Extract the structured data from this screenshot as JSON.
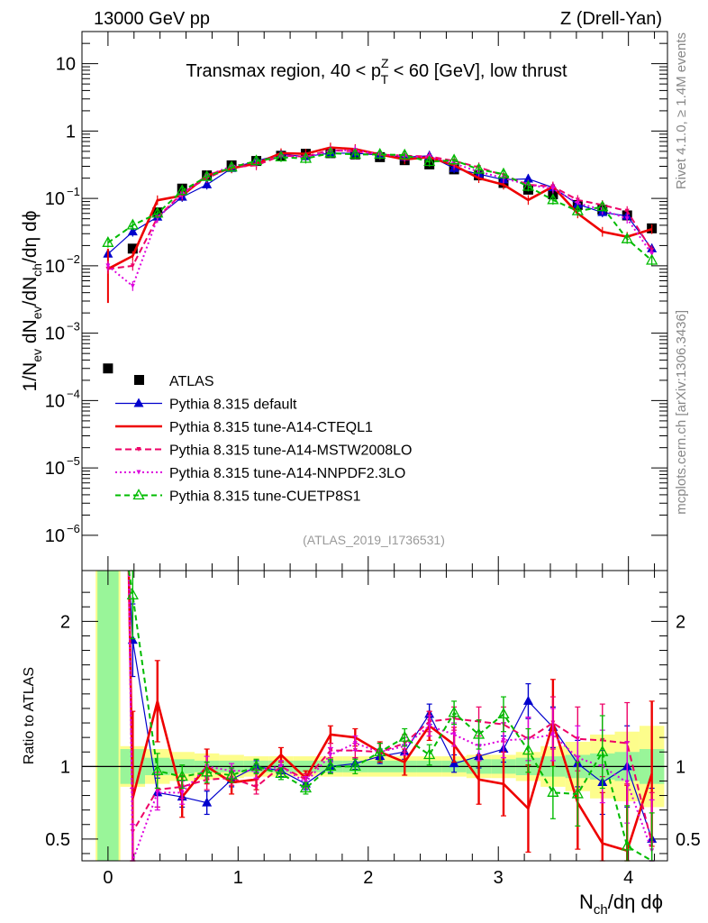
{
  "header": {
    "left": "13000 GeV pp",
    "right": "Z (Drell-Yan)"
  },
  "side": {
    "rivet": "Rivet 4.1.0, ≥ 1.4M events",
    "mcplots": "mcplots.cern.ch [arXiv:1306.3436]"
  },
  "analysis_id": "(ATLAS_2019_I1736531)",
  "colors": {
    "atlas": "#000000",
    "default": "#0000cc",
    "cteql1": "#ee0000",
    "mstw": "#ee0066",
    "nnpdf": "#dd00dd",
    "cuetp8s1": "#00bb00",
    "band_inner": "#99f599",
    "band_outer": "#fdfd8c"
  },
  "chart_data": [
    {
      "type": "scatter",
      "title_parts": {
        "pre": "Transmax region, 40 < p",
        "sup": "Z",
        "sub": "T",
        "post": " < 60 [GeV], low thrust"
      },
      "ylabel_parts": [
        "1/N",
        "ev",
        " dN",
        "ev",
        "/dN",
        "ch",
        "/dη dϕ"
      ],
      "yscale": "log",
      "ylim": [
        3e-07,
        30
      ],
      "xlim": [
        -0.2,
        4.3
      ],
      "yticks": [
        {
          "v": 10,
          "label": "10"
        },
        {
          "v": 1,
          "label": "1"
        },
        {
          "v": 0.1,
          "label": "10",
          "exp": "−1"
        },
        {
          "v": 0.01,
          "label": "10",
          "exp": "−2"
        },
        {
          "v": 0.001,
          "label": "10",
          "exp": "−3"
        },
        {
          "v": 0.0001,
          "label": "10",
          "exp": "−4"
        },
        {
          "v": 1e-05,
          "label": "10",
          "exp": "−5"
        },
        {
          "v": 1e-06,
          "label": "10",
          "exp": "−6"
        }
      ],
      "x": [
        0.0,
        0.19,
        0.38,
        0.57,
        0.76,
        0.95,
        1.14,
        1.33,
        1.52,
        1.71,
        1.9,
        2.09,
        2.28,
        2.47,
        2.66,
        2.85,
        3.04,
        3.23,
        3.42,
        3.61,
        3.8,
        3.99,
        4.18
      ],
      "series": [
        {
          "name": "ATLAS",
          "key": "atlas",
          "style": "square",
          "values": [
            0.0003,
            0.018,
            0.062,
            0.14,
            0.22,
            0.31,
            0.36,
            0.43,
            0.46,
            0.47,
            0.45,
            0.41,
            0.37,
            0.32,
            0.27,
            0.22,
            0.17,
            0.135,
            0.115,
            0.08,
            0.068,
            0.056,
            0.036
          ]
        },
        {
          "name": "Pythia 8.315 default",
          "key": "default",
          "style": "triangle-filled",
          "values": [
            0.015,
            0.032,
            0.053,
            0.105,
            0.16,
            0.28,
            0.36,
            0.45,
            0.42,
            0.47,
            0.47,
            0.44,
            0.41,
            0.43,
            0.28,
            0.23,
            0.19,
            0.195,
            0.145,
            0.082,
            0.062,
            0.055,
            0.018
          ]
        },
        {
          "name": "Pythia 8.315 tune-A14-CTEQL1",
          "key": "cteql1",
          "style": "solid",
          "values": [
            0.009,
            0.014,
            0.094,
            0.11,
            0.22,
            0.28,
            0.33,
            0.47,
            0.46,
            0.57,
            0.54,
            0.45,
            0.38,
            0.41,
            0.31,
            0.2,
            0.16,
            0.095,
            0.15,
            0.06,
            0.032,
            0.027,
            0.035
          ]
        },
        {
          "name": "Pythia 8.315 tune-A14-MSTW2008LO",
          "key": "mstw",
          "style": "dashed",
          "values": [
            0.009,
            0.01,
            0.052,
            0.12,
            0.2,
            0.29,
            0.31,
            0.43,
            0.42,
            0.52,
            0.5,
            0.45,
            0.43,
            0.42,
            0.36,
            0.29,
            0.22,
            0.16,
            0.15,
            0.095,
            0.08,
            0.065,
            0.017
          ]
        },
        {
          "name": "Pythia 8.315 tune-A14-NNPDF2.3LO",
          "key": "nnpdf",
          "style": "dotted",
          "values": [
            0.01,
            0.005,
            0.051,
            0.115,
            0.22,
            0.3,
            0.35,
            0.43,
            0.41,
            0.51,
            0.52,
            0.45,
            0.42,
            0.41,
            0.33,
            0.25,
            0.2,
            0.16,
            0.14,
            0.085,
            0.068,
            0.05,
            0.015
          ]
        },
        {
          "name": "Pythia 8.315 tune-CUETP8S1",
          "key": "cuetp8s1",
          "style": "dashed-triangle-open",
          "values": [
            0.022,
            0.04,
            0.06,
            0.13,
            0.21,
            0.29,
            0.36,
            0.41,
            0.39,
            0.47,
            0.45,
            0.45,
            0.44,
            0.35,
            0.37,
            0.27,
            0.23,
            0.15,
            0.095,
            0.065,
            0.075,
            0.025,
            0.012
          ]
        }
      ]
    },
    {
      "type": "line",
      "ylabel": "Ratio to ATLAS",
      "xlabel_parts": [
        "N",
        "ch",
        "/dη dϕ"
      ],
      "ylim": [
        0.35,
        2.35
      ],
      "xlim": [
        -0.2,
        4.3
      ],
      "yticks": [
        {
          "v": 0.5,
          "label": "0.5"
        },
        {
          "v": 1,
          "label": "1"
        },
        {
          "v": 2,
          "label": "2"
        }
      ],
      "xticks": [
        {
          "v": 0,
          "label": "0"
        },
        {
          "v": 1,
          "label": "1"
        },
        {
          "v": 2,
          "label": "2"
        },
        {
          "v": 3,
          "label": "3"
        },
        {
          "v": 4,
          "label": "4"
        }
      ],
      "x": [
        0.0,
        0.19,
        0.38,
        0.57,
        0.76,
        0.95,
        1.14,
        1.33,
        1.52,
        1.71,
        1.9,
        2.09,
        2.28,
        2.47,
        2.66,
        2.85,
        3.04,
        3.23,
        3.42,
        3.61,
        3.8,
        3.99,
        4.18
      ],
      "band_inner": [
        1.6,
        0.12,
        0.06,
        0.05,
        0.04,
        0.04,
        0.04,
        0.04,
        0.04,
        0.04,
        0.04,
        0.04,
        0.04,
        0.04,
        0.04,
        0.05,
        0.05,
        0.06,
        0.07,
        0.08,
        0.09,
        0.1,
        0.12
      ],
      "band_outer": [
        1.6,
        0.14,
        0.12,
        0.1,
        0.09,
        0.08,
        0.07,
        0.07,
        0.07,
        0.07,
        0.07,
        0.07,
        0.07,
        0.07,
        0.07,
        0.08,
        0.08,
        0.1,
        0.14,
        0.17,
        0.22,
        0.24,
        0.28
      ],
      "series": [
        {
          "name": "Pythia 8.315 default",
          "key": "default",
          "style": "triangle-filled",
          "values": [
            null,
            1.87,
            0.82,
            0.79,
            0.75,
            0.91,
            1.0,
            0.97,
            0.88,
            1.0,
            1.02,
            1.07,
            1.1,
            1.36,
            1.02,
            1.07,
            1.12,
            1.45,
            1.27,
            1.02,
            0.89,
            1.0,
            0.5
          ],
          "errors": [
            0,
            0.25,
            0.1,
            0.07,
            0.08,
            0.05,
            0.04,
            0.04,
            0.04,
            0.04,
            0.04,
            0.05,
            0.05,
            0.07,
            0.06,
            0.08,
            0.09,
            0.12,
            0.14,
            0.16,
            0.22,
            0.28,
            0.35
          ]
        },
        {
          "name": "Pythia 8.315 tune-A14-CTEQL1",
          "key": "cteql1",
          "style": "solid",
          "values": [
            null,
            0.78,
            1.45,
            0.79,
            1.0,
            0.89,
            0.91,
            1.08,
            0.92,
            1.22,
            1.2,
            1.1,
            1.03,
            1.28,
            1.15,
            0.91,
            0.88,
            0.71,
            1.3,
            0.75,
            0.47,
            0.42,
            0.95
          ],
          "errors": [
            0,
            0.6,
            0.28,
            0.14,
            0.12,
            0.08,
            0.07,
            0.05,
            0.05,
            0.06,
            0.06,
            0.07,
            0.09,
            0.1,
            0.12,
            0.17,
            0.22,
            0.3,
            0.3,
            0.32,
            0.35,
            0.45,
            0.5
          ]
        },
        {
          "name": "Pythia 8.315 tune-A14-MSTW2008LO",
          "key": "mstw",
          "style": "dashed",
          "values": [
            null,
            0.55,
            0.84,
            0.86,
            0.91,
            0.92,
            0.86,
            1.0,
            0.91,
            1.11,
            1.11,
            1.1,
            1.16,
            1.31,
            1.33,
            1.31,
            1.29,
            1.19,
            1.3,
            1.19,
            1.18,
            1.16,
            0.47
          ],
          "errors": [
            0,
            0.3,
            0.12,
            0.08,
            0.07,
            0.05,
            0.05,
            0.04,
            0.04,
            0.05,
            0.05,
            0.06,
            0.06,
            0.07,
            0.08,
            0.1,
            0.12,
            0.15,
            0.18,
            0.22,
            0.25,
            0.28,
            0.35
          ]
        },
        {
          "name": "Pythia 8.315 tune-A14-NNPDF2.3LO",
          "key": "nnpdf",
          "style": "dotted",
          "values": [
            null,
            0.3,
            0.82,
            0.82,
            1.0,
            0.97,
            0.97,
            1.0,
            0.89,
            1.08,
            1.16,
            1.1,
            1.14,
            1.28,
            1.22,
            1.14,
            1.18,
            1.19,
            1.22,
            1.06,
            1.0,
            0.89,
            0.42
          ],
          "errors": [
            0,
            0.3,
            0.12,
            0.08,
            0.07,
            0.05,
            0.05,
            0.04,
            0.04,
            0.05,
            0.05,
            0.06,
            0.06,
            0.07,
            0.08,
            0.1,
            0.12,
            0.15,
            0.18,
            0.22,
            0.25,
            0.28,
            0.35
          ]
        },
        {
          "name": "Pythia 8.315 tune-CUETP8S1",
          "key": "cuetp8s1",
          "style": "dashed-triangle-open",
          "values": [
            null,
            2.18,
            0.97,
            0.93,
            0.96,
            0.94,
            1.0,
            0.95,
            0.85,
            1.0,
            1.0,
            1.1,
            1.2,
            1.08,
            1.37,
            1.22,
            1.36,
            1.11,
            0.82,
            0.81,
            1.1,
            0.45,
            0.33
          ],
          "errors": [
            0,
            0.3,
            0.12,
            0.08,
            0.07,
            0.05,
            0.05,
            0.04,
            0.04,
            0.05,
            0.05,
            0.06,
            0.06,
            0.07,
            0.08,
            0.1,
            0.12,
            0.15,
            0.18,
            0.22,
            0.25,
            0.28,
            0.35
          ]
        }
      ]
    }
  ]
}
